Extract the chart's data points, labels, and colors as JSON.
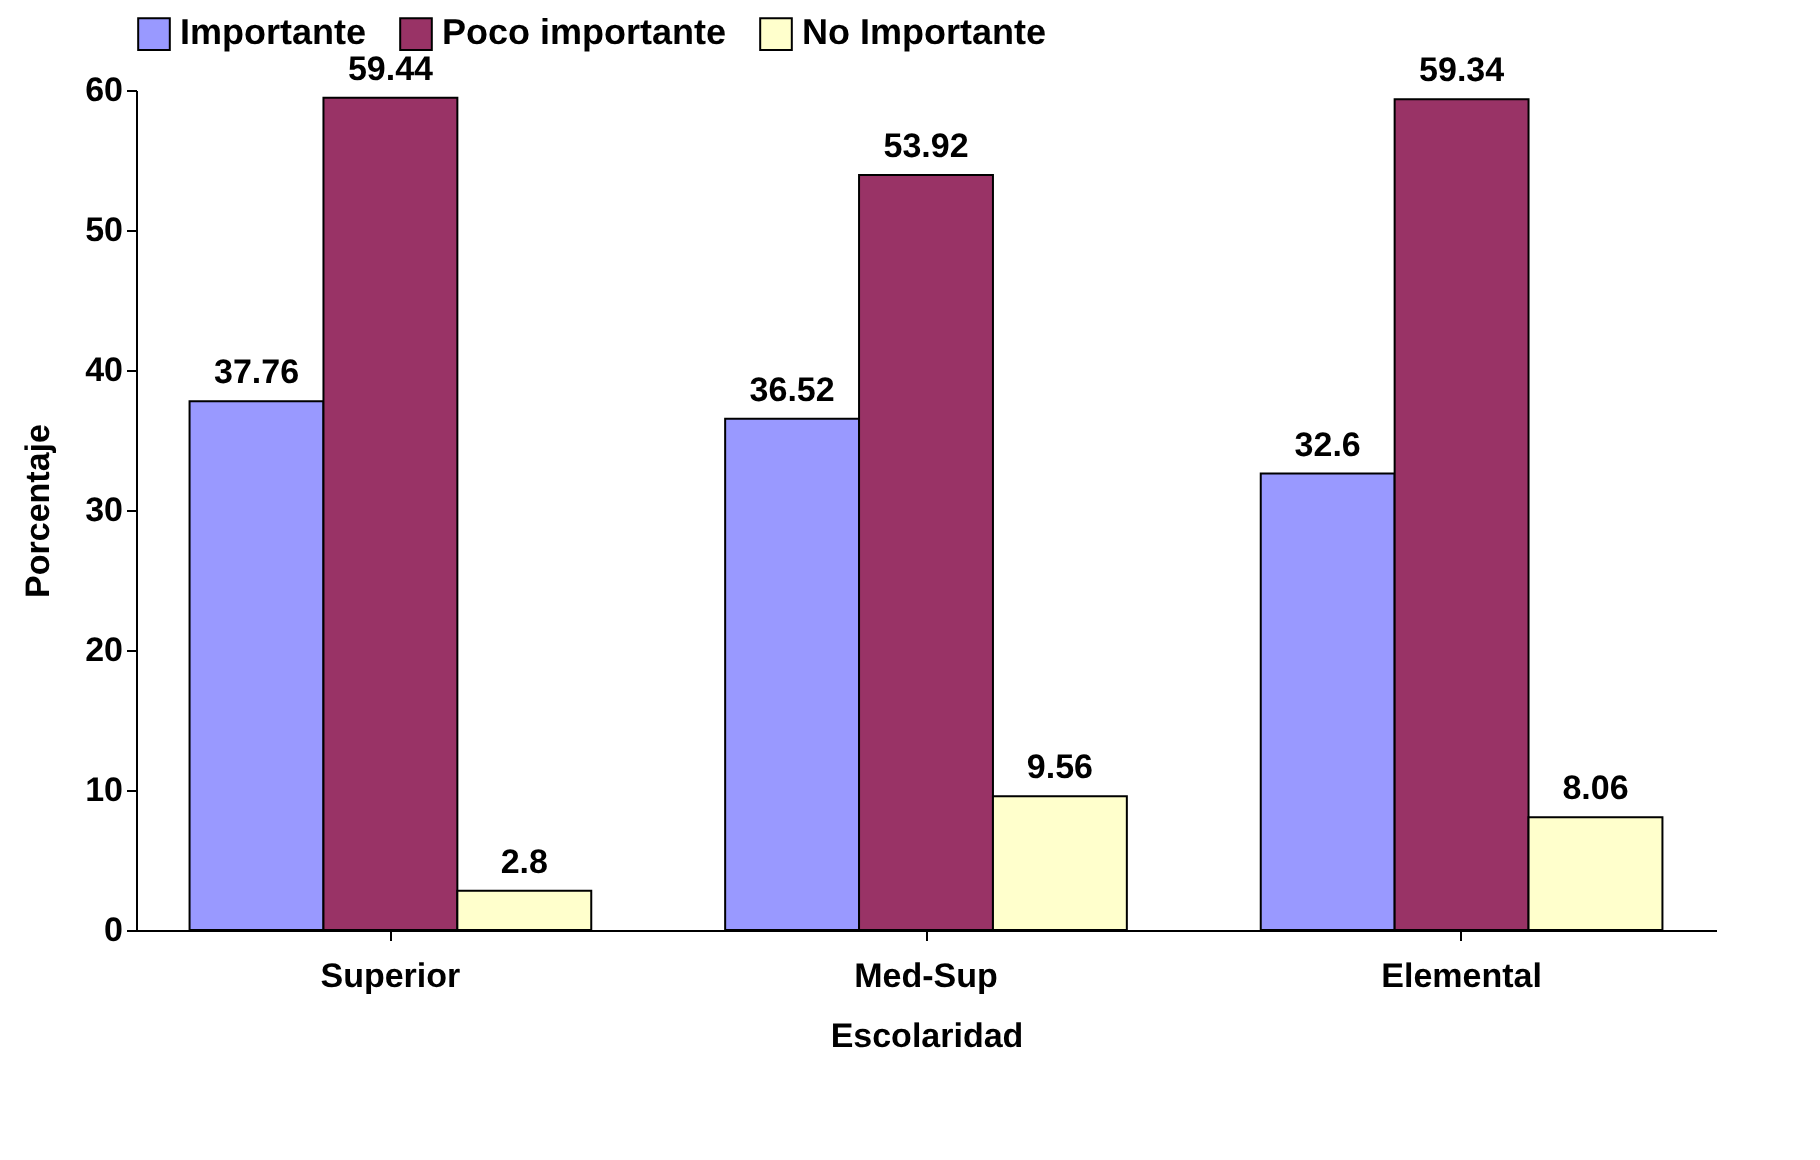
{
  "chart_data": {
    "type": "bar",
    "xlabel": "Escolaridad",
    "ylabel": "Porcentaje",
    "categories": [
      "Superior",
      "Med-Sup",
      "Elemental"
    ],
    "series": [
      {
        "name": "Importante",
        "color": "#9999ff",
        "values": [
          37.76,
          36.52,
          32.6
        ]
      },
      {
        "name": "Poco importante",
        "color": "#993366",
        "values": [
          59.44,
          53.92,
          59.34
        ]
      },
      {
        "name": "No Importante",
        "color": "#ffffcc",
        "values": [
          2.8,
          9.56,
          8.06
        ]
      }
    ],
    "ylim": [
      0,
      60
    ],
    "yticks": [
      0,
      10,
      20,
      30,
      40,
      50,
      60
    ],
    "grid": false,
    "legend": "top",
    "data_labels": true
  }
}
